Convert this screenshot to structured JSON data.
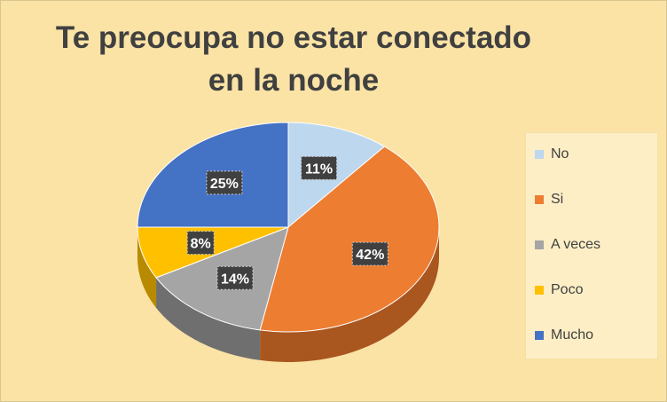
{
  "chart_data": {
    "type": "pie",
    "title": "Te preocupa no estar conectado en la noche",
    "categories": [
      "No",
      "Si",
      "A veces",
      "Poco",
      "Mucho"
    ],
    "values": [
      11,
      42,
      14,
      8,
      25
    ],
    "labels": [
      "11%",
      "42%",
      "14%",
      "8%",
      "25%"
    ],
    "colors": [
      "#bdd7ee",
      "#ed7d31",
      "#a5a5a5",
      "#ffc000",
      "#4472c4"
    ],
    "side_colors": [
      "#8fa9bf",
      "#a9561f",
      "#6f6f6f",
      "#b88a00",
      "#2e5190"
    ],
    "legend_position": "right"
  }
}
